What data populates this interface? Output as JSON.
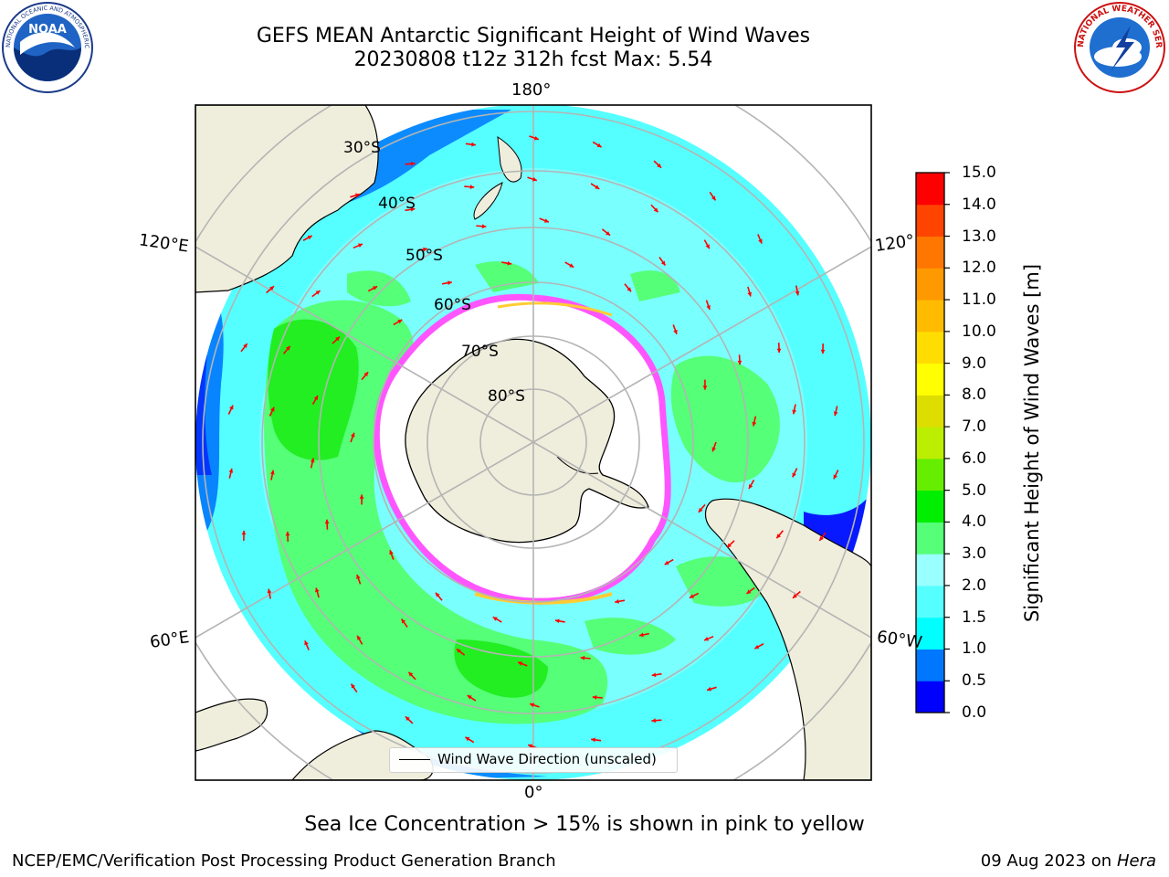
{
  "header": {
    "title": "GEFS MEAN Antarctic Significant Height of Wind Waves",
    "subtitle": "20230808 t12z 312h fcst   Max: 5.54"
  },
  "logos": {
    "noaa": {
      "text": "NOAA",
      "ring_text": "NATIONAL OCEANIC AND ATMOSPHERIC ADMINISTRATION"
    },
    "nws": {
      "ring_text": "NATIONAL WEATHER SERVICE"
    }
  },
  "map": {
    "lon_labels": [
      "180°",
      "120°E",
      "120°",
      "60°E",
      "60°W",
      "0°"
    ],
    "lat_labels": [
      "30°S",
      "40°S",
      "50°S",
      "60°S",
      "70°S",
      "80°S"
    ],
    "legend_label": "Wind Wave Direction (unscaled)",
    "colors": {
      "land": "#efeedc",
      "ocean_low": "#00ffff",
      "ocean_mid": "#99ffff",
      "wave_3_4": "#55ff77",
      "wave_4_5": "#22ee22",
      "coast_blue": "#0077ff",
      "deep_blue": "#0000ff",
      "ice_pink": "#ff55ff",
      "ice_yellow": "#ffcc33",
      "arrow": "#ff0000"
    }
  },
  "colorbar": {
    "label": "Significant Height of Wind Waves [m]",
    "ticks": [
      "15.0",
      "14.0",
      "13.0",
      "12.0",
      "11.0",
      "10.0",
      "9.0",
      "8.0",
      "7.0",
      "6.0",
      "5.0",
      "4.0",
      "3.0",
      "2.0",
      "1.5",
      "1.0",
      "0.5",
      "0.0"
    ],
    "colors": [
      "#0000ff",
      "#0077ff",
      "#00ffff",
      "#55ffff",
      "#99ffff",
      "#55ff77",
      "#00ee00",
      "#66ee00",
      "#bbee00",
      "#dddd00",
      "#ffff00",
      "#ffdd00",
      "#ffbb00",
      "#ff9900",
      "#ff7700",
      "#ff4400",
      "#ff0000"
    ]
  },
  "footer": {
    "note": "Sea Ice Concentration > 15% is shown in pink to yellow",
    "left": "NCEP/EMC/Verification Post Processing Product Generation Branch",
    "date": "09 Aug 2023 on",
    "machine": "Hera"
  }
}
